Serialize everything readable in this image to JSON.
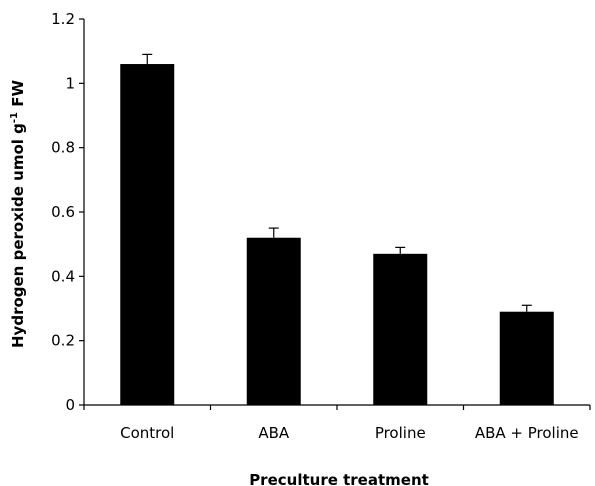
{
  "chart_data": {
    "type": "bar",
    "categories": [
      "Control",
      "ABA",
      "Proline",
      "ABA + Proline"
    ],
    "values": [
      1.06,
      0.52,
      0.47,
      0.29
    ],
    "errors": [
      0.03,
      0.03,
      0.02,
      0.02
    ],
    "xlabel": "Preculture treatment",
    "ylabel_main": "Hydrogen peroxide umol g",
    "ylabel_sup": "-1",
    "ylabel_tail": " FW",
    "ylim": [
      0,
      1.2
    ],
    "yticks": [
      0,
      0.2,
      0.4,
      0.6,
      0.8,
      1,
      1.2
    ],
    "ytick_labels": [
      "0",
      "0.2",
      "0.4",
      "0.6",
      "0.8",
      "1",
      "1.2"
    ],
    "bar_color": "#000000",
    "grid": false,
    "legend": "none"
  }
}
